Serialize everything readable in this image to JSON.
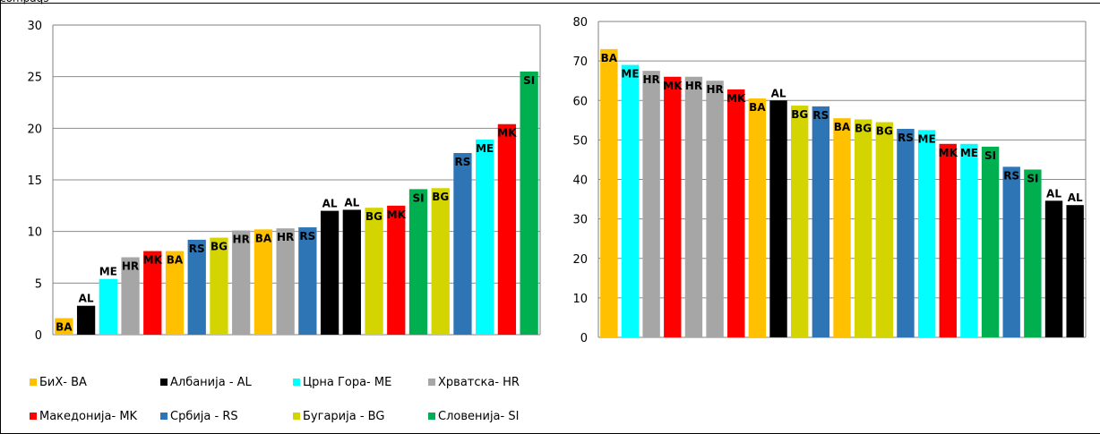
{
  "caption_fragment": "compaqs",
  "colors": {
    "BA": "#FFC000",
    "AL": "#000000",
    "ME": "#00FFFF",
    "HR": "#A6A6A6",
    "MK": "#FF0000",
    "RS": "#2E75B6",
    "BG": "#D4D400",
    "SI": "#00B050",
    "grid": "#8C8C8C",
    "axis": "#808080"
  },
  "legend": [
    {
      "code": "BA",
      "label": "БиХ- BA"
    },
    {
      "code": "AL",
      "label": "Албанија - AL"
    },
    {
      "code": "ME",
      "label": "Црна Гора- ME"
    },
    {
      "code": "HR",
      "label": "Хрватска- HR"
    },
    {
      "code": "MK",
      "label": "Македонија- MK"
    },
    {
      "code": "RS",
      "label": "Србија - RS"
    },
    {
      "code": "BG",
      "label": "Бугарија - BG"
    },
    {
      "code": "SI",
      "label": "Словенија- SI"
    }
  ],
  "chart_data": [
    {
      "type": "bar",
      "ylim": [
        0,
        30
      ],
      "yticks": [
        "0",
        "5",
        "10",
        "15",
        "20",
        "25",
        "30"
      ],
      "grid": true,
      "legend": "bottom",
      "categories": [
        "BA",
        "AL",
        "ME",
        "HR",
        "MK",
        "BA",
        "RS",
        "BG",
        "HR",
        "BA",
        "HR",
        "RS",
        "AL",
        "AL",
        "BG",
        "MK",
        "SI",
        "BG",
        "RS",
        "ME",
        "MK",
        "SI"
      ],
      "values": [
        1.6,
        2.8,
        5.4,
        7.5,
        8.1,
        8.1,
        9.2,
        9.4,
        10.1,
        10.2,
        10.3,
        10.4,
        12.0,
        12.1,
        12.3,
        12.5,
        14.1,
        14.2,
        17.6,
        18.9,
        20.4,
        25.5
      ],
      "label_position": [
        "inside",
        "above",
        "above",
        "inside",
        "inside",
        "inside",
        "inside",
        "inside",
        "inside",
        "inside",
        "inside",
        "inside",
        "above",
        "above",
        "inside",
        "inside",
        "inside",
        "inside",
        "inside",
        "inside",
        "inside",
        "inside"
      ]
    },
    {
      "type": "bar",
      "ylim": [
        0,
        80
      ],
      "yticks": [
        "0",
        "10",
        "20",
        "30",
        "40",
        "50",
        "60",
        "70",
        "80"
      ],
      "grid": true,
      "categories": [
        "BA",
        "ME",
        "HR",
        "MK",
        "HR",
        "HR",
        "MK",
        "BA",
        "AL",
        "BG",
        "RS",
        "BA",
        "BG",
        "BG",
        "RS",
        "ME",
        "MK",
        "ME",
        "SI",
        "RS",
        "SI",
        "AL",
        "AL"
      ],
      "values": [
        73,
        69,
        67.5,
        66,
        66,
        65,
        62.8,
        60.5,
        60,
        58.7,
        58.5,
        55.5,
        55.2,
        54.5,
        52.8,
        52.5,
        49,
        49,
        48.3,
        43.2,
        42.5,
        34.6,
        33.5
      ],
      "label_position": [
        "inside",
        "inside",
        "inside",
        "inside",
        "inside",
        "inside",
        "inside",
        "inside",
        "above",
        "inside",
        "inside",
        "inside",
        "inside",
        "inside",
        "inside",
        "inside",
        "inside",
        "inside",
        "inside",
        "inside",
        "inside",
        "above",
        "above"
      ]
    }
  ]
}
